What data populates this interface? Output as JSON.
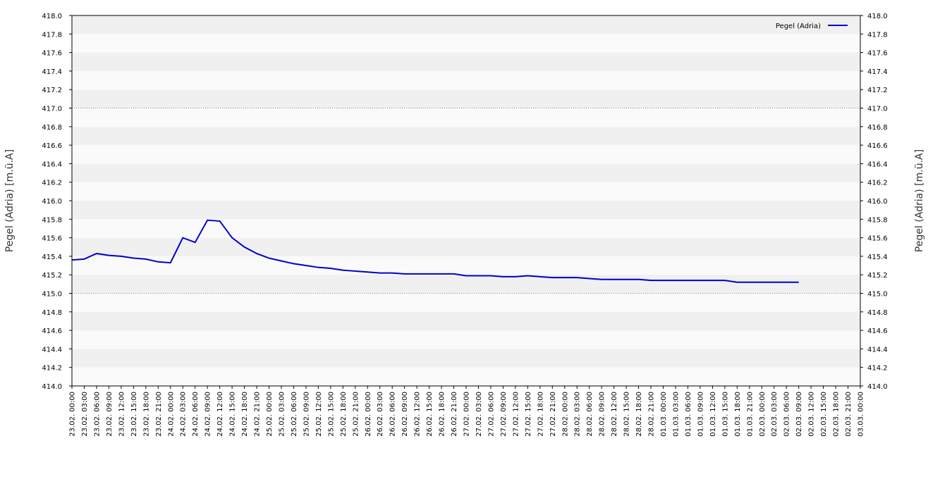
{
  "chart_data": {
    "type": "line",
    "y_label": "Pegel (Adria) [m.ü.A]",
    "y2_label": "Pegel (Adria) [m.ü.A]",
    "x": [
      "23.02. 00:00",
      "23.02. 03:00",
      "23.02. 06:00",
      "23.02. 09:00",
      "23.02. 12:00",
      "23.02. 15:00",
      "23.02. 18:00",
      "23.02. 21:00",
      "24.02. 00:00",
      "24.02. 03:00",
      "24.02. 06:00",
      "24.02. 09:00",
      "24.02. 12:00",
      "24.02. 15:00",
      "24.02. 18:00",
      "24.02. 21:00",
      "25.02. 00:00",
      "25.02. 03:00",
      "25.02. 06:00",
      "25.02. 09:00",
      "25.02. 12:00",
      "25.02. 15:00",
      "25.02. 18:00",
      "25.02. 21:00",
      "26.02. 00:00",
      "26.02. 03:00",
      "26.02. 06:00",
      "26.02. 09:00",
      "26.02. 12:00",
      "26.02. 15:00",
      "26.02. 18:00",
      "26.02. 21:00",
      "27.02. 00:00",
      "27.02. 03:00",
      "27.02. 06:00",
      "27.02. 09:00",
      "27.02. 12:00",
      "27.02. 15:00",
      "27.02. 18:00",
      "27.02. 21:00",
      "28.02. 00:00",
      "28.02. 03:00",
      "28.02. 06:00",
      "28.02. 09:00",
      "28.02. 12:00",
      "28.02. 15:00",
      "28.02. 18:00",
      "28.02. 21:00",
      "01.03. 00:00",
      "01.03. 03:00",
      "01.03. 06:00",
      "01.03. 09:00",
      "01.03. 12:00",
      "01.03. 15:00",
      "01.03. 18:00",
      "01.03. 21:00",
      "02.03. 00:00",
      "02.03. 03:00",
      "02.03. 06:00",
      "02.03. 09:00",
      "02.03. 12:00",
      "02.03. 15:00",
      "02.03. 18:00",
      "02.03. 21:00",
      "03.03. 00:00"
    ],
    "series": [
      {
        "name": "Pegel (Adria)",
        "color": "#0000cc",
        "values": [
          415.36,
          415.37,
          415.43,
          415.41,
          415.4,
          415.38,
          415.37,
          415.34,
          415.33,
          415.6,
          415.55,
          415.79,
          415.78,
          415.6,
          415.5,
          415.43,
          415.38,
          415.35,
          415.32,
          415.3,
          415.28,
          415.27,
          415.25,
          415.24,
          415.23,
          415.22,
          415.22,
          415.21,
          415.21,
          415.21,
          415.21,
          415.21,
          415.19,
          415.19,
          415.19,
          415.18,
          415.18,
          415.19,
          415.18,
          415.17,
          415.17,
          415.17,
          415.16,
          415.15,
          415.15,
          415.15,
          415.15,
          415.14,
          415.14,
          415.14,
          415.14,
          415.14,
          415.14,
          415.14,
          415.12,
          415.12,
          415.12,
          415.12,
          415.12,
          415.12,
          null,
          null,
          null,
          null,
          null
        ]
      }
    ],
    "ylim": [
      414.0,
      418.0
    ],
    "yticks": [
      {
        "value": 414.0,
        "label": "414.0"
      },
      {
        "value": 414.2,
        "label": "414.2"
      },
      {
        "value": 414.4,
        "label": "414.4"
      },
      {
        "value": 414.6,
        "label": "414.6"
      },
      {
        "value": 414.8,
        "label": "414.8"
      },
      {
        "value": 415.0,
        "label": "415.0"
      },
      {
        "value": 415.2,
        "label": "415.2"
      },
      {
        "value": 415.4,
        "label": "415.4"
      },
      {
        "value": 415.6,
        "label": "415.6"
      },
      {
        "value": 415.8,
        "label": "415.8"
      },
      {
        "value": 416.0,
        "label": "416.0"
      },
      {
        "value": 416.2,
        "label": "416.2"
      },
      {
        "value": 416.4,
        "label": "416.4"
      },
      {
        "value": 416.6,
        "label": "416.6"
      },
      {
        "value": 416.8,
        "label": "416.8"
      },
      {
        "value": 417.0,
        "label": "417.0"
      },
      {
        "value": 417.2,
        "label": "417.2"
      },
      {
        "value": 417.4,
        "label": "417.4"
      },
      {
        "value": 417.6,
        "label": "417.6"
      },
      {
        "value": 417.8,
        "label": "417.8"
      },
      {
        "value": 418.0,
        "label": "418.0"
      }
    ],
    "ref_lines": [
      415.0,
      417.0
    ],
    "legend": "top-right"
  }
}
